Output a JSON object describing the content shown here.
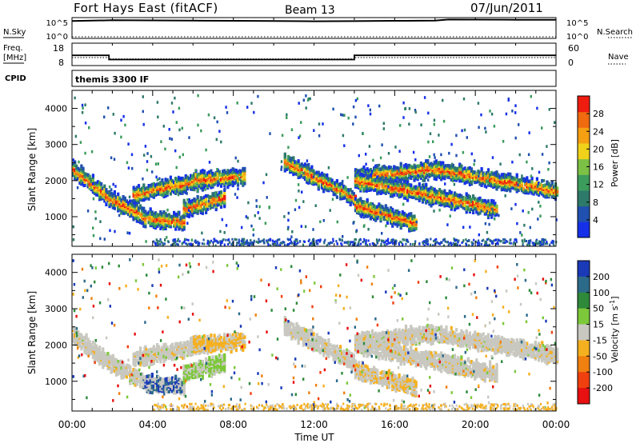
{
  "header": {
    "station": "Fort Hays East (fitACF)",
    "beam": "Beam 13",
    "date": "07/Jun/2011"
  },
  "summary": {
    "left_label_1": "N.Sky",
    "left_label_2": "Freq.",
    "left_label_2_unit": "[MHz]",
    "left_label_3": "CPID",
    "right_label_1": "N.Search",
    "right_label_2": "Nave",
    "cpid_text": "themis 3300 IF",
    "nsky_ticks": [
      "10^5",
      "10^0"
    ],
    "nsearch_ticks": [
      "10^5",
      "10^0"
    ],
    "freq_ticks": [
      "18",
      "8"
    ],
    "nave_ticks": [
      "60",
      "0"
    ]
  },
  "colors": {
    "power": [
      "#1530e8",
      "#2050b0",
      "#2e7a6a",
      "#3c9c5c",
      "#7cc045",
      "#f0d21a",
      "#f5a012",
      "#f06a10",
      "#ef1c10"
    ],
    "velocity": [
      "#1a3ab8",
      "#2c6a8a",
      "#2e8a3a",
      "#7cc83a",
      "#c8c8c0",
      "#f5b020",
      "#f08010",
      "#f04010",
      "#e81010"
    ]
  },
  "chart_data": [
    {
      "type": "line",
      "panel": "N.Sky / N.Search",
      "x": [
        "00:00",
        "01:00",
        "02:00",
        "04:00",
        "06:00",
        "08:00",
        "10:00",
        "12:00",
        "14:00",
        "16:00",
        "18:00",
        "18:40",
        "20:00",
        "22:00",
        "24:00"
      ],
      "series": [
        {
          "name": "N.Sky",
          "values": [
            30000,
            40000,
            50000,
            45000,
            40000,
            35000,
            30000,
            25000,
            28000,
            35000,
            40000,
            80000,
            75000,
            70000,
            65000
          ]
        },
        {
          "name": "N.Search",
          "values": [
            1,
            1,
            1,
            1,
            1,
            1,
            1,
            1,
            1,
            1,
            1,
            1,
            1,
            1,
            1
          ]
        }
      ],
      "ylim": [
        1,
        100000
      ],
      "log": true
    },
    {
      "type": "line",
      "panel": "Freq. / Nave",
      "series": [
        {
          "name": "Freq.",
          "x": [
            "00:00",
            "01:50",
            "01:50",
            "14:00",
            "14:00",
            "24:00"
          ],
          "values": [
            12.5,
            12.5,
            10.3,
            10.3,
            12.5,
            12.5
          ]
        },
        {
          "name": "Nave",
          "x": [
            "00:00",
            "01:50",
            "01:50",
            "14:00",
            "14:00",
            "24:00"
          ],
          "values": [
            20,
            20,
            16,
            16,
            20,
            20
          ]
        }
      ],
      "ylim_freq": [
        8,
        18
      ],
      "ylim_nave": [
        0,
        60
      ]
    },
    {
      "type": "heatmap",
      "panel": "Power",
      "xlabel": "Time UT",
      "ylabel": "Slant Range [km]",
      "x_ticks": [
        "00:00",
        "04:00",
        "08:00",
        "12:00",
        "16:00",
        "20:00",
        "00:00"
      ],
      "y_ticks": [
        1000,
        2000,
        3000,
        4000
      ],
      "ylim": [
        180,
        4500
      ],
      "colorbar": {
        "label": "Power [dB]",
        "ticks": [
          4,
          8,
          12,
          16,
          20,
          24,
          28
        ],
        "range": [
          0,
          32
        ]
      },
      "echo_bands": [
        {
          "start": [
            0.0,
            2300
          ],
          "end": [
            1.8,
            1500
          ]
        },
        {
          "start": [
            1.8,
            1500
          ],
          "end": [
            3.5,
            1000
          ]
        },
        {
          "start": [
            3.5,
            950
          ],
          "end": [
            5.5,
            850
          ]
        },
        {
          "start": [
            5.5,
            1200
          ],
          "end": [
            7.5,
            1500
          ]
        },
        {
          "start": [
            3.0,
            1600
          ],
          "end": [
            6.5,
            2000
          ]
        },
        {
          "start": [
            6.0,
            2000
          ],
          "end": [
            8.5,
            2100
          ]
        },
        {
          "start": [
            10.5,
            2500
          ],
          "end": [
            14.0,
            1500
          ]
        },
        {
          "start": [
            14.0,
            1300
          ],
          "end": [
            17.0,
            800
          ]
        },
        {
          "start": [
            14.0,
            2100
          ],
          "end": [
            18.0,
            2300
          ]
        },
        {
          "start": [
            18.0,
            2300
          ],
          "end": [
            21.0,
            2000
          ]
        },
        {
          "start": [
            21.0,
            2000
          ],
          "end": [
            24.0,
            1700
          ]
        },
        {
          "start": [
            14.0,
            2000
          ],
          "end": [
            21.0,
            1200
          ]
        }
      ]
    },
    {
      "type": "heatmap",
      "panel": "Velocity",
      "xlabel": "Time UT",
      "ylabel": "Slant Range [km]",
      "x_ticks": [
        "00:00",
        "04:00",
        "08:00",
        "12:00",
        "16:00",
        "20:00",
        "00:00"
      ],
      "y_ticks": [
        1000,
        2000,
        3000,
        4000
      ],
      "ylim": [
        180,
        4500
      ],
      "colorbar": {
        "label": "Velocity [m s^-1]",
        "ticks": [
          200,
          100,
          50,
          15,
          -15,
          -50,
          -100,
          -200
        ]
      }
    }
  ]
}
